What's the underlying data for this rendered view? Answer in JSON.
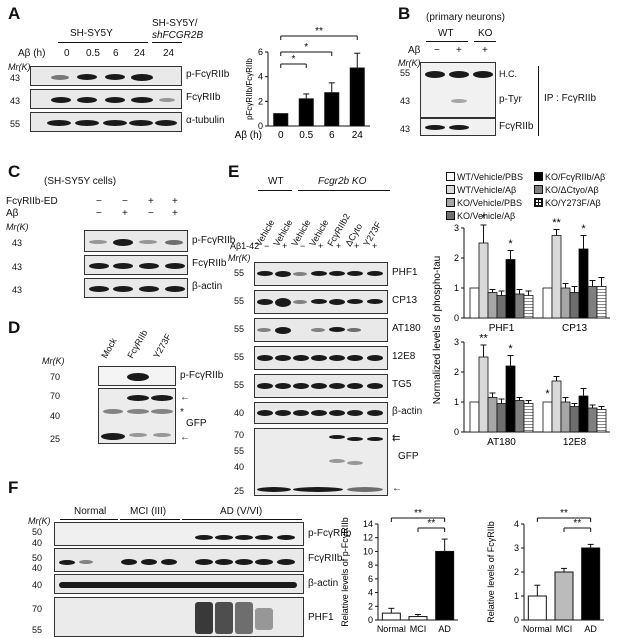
{
  "panels": {
    "A": {
      "letter": "A",
      "groups": [
        "SH-SY5Y",
        "SH-SY5Y/",
        "shFCGR2B"
      ],
      "abeta_label": "Aβ (h)",
      "times": [
        "0",
        "0.5",
        "6",
        "24",
        "24"
      ],
      "mr": "Mr(K)",
      "rows": [
        {
          "mw": "43",
          "label": "p-FcγRIIb"
        },
        {
          "mw": "43",
          "label": "FcγRIIb"
        },
        {
          "mw": "55",
          "label": "α-tubulin"
        }
      ]
    },
    "B": {
      "letter": "B",
      "subtitle": "(primary neurons)",
      "wt": "WT",
      "ko": "KO",
      "abeta": "Aβ",
      "minus": "−",
      "plus": "+",
      "mr": "Mr(K)",
      "mws": [
        "55",
        "43",
        "43"
      ],
      "labels": [
        "H.C.",
        "p-Tyr",
        "FcγRIIb"
      ],
      "ip": "IP : FcγRIIb"
    },
    "C": {
      "letter": "C",
      "subtitle": "(SH-SY5Y cells)",
      "cond1": "FcγRIIb-ED",
      "cond2": "Aβ",
      "signs1": [
        "−",
        "−",
        "+",
        "+"
      ],
      "signs2": [
        "−",
        "+",
        "−",
        "+"
      ],
      "mr": "Mr(K)",
      "rows": [
        {
          "mw": "43",
          "label": "p-FcγRIIb"
        },
        {
          "mw": "43",
          "label": "FcγRIIb"
        },
        {
          "mw": "43",
          "label": "β-actin"
        }
      ]
    },
    "D": {
      "letter": "D",
      "lanes": [
        "Mock",
        "FcγRIIb",
        "Y273F"
      ],
      "mr": "Mr(K)",
      "mws": [
        "70",
        "70",
        "40",
        "25"
      ],
      "labels": [
        "p-FcγRIIb",
        "GFP"
      ],
      "star": "*"
    },
    "E": {
      "letter": "E",
      "wt": "WT",
      "ko": "Fcgr2b KO",
      "lanes": [
        "Vehicle",
        "Vehicle",
        "Vehicle",
        "Vehicle",
        "FcγRIIb2",
        "ΔCyto",
        "Y273F"
      ],
      "abeta": "Aβ1-42",
      "signs": [
        "−",
        "+",
        "−",
        "+",
        "+",
        "+",
        "+"
      ],
      "mr": "Mr(K)",
      "rows": [
        {
          "mw": "55",
          "label": "PHF1"
        },
        {
          "mw": "55",
          "label": "CP13"
        },
        {
          "mw": "55",
          "label": "AT180"
        },
        {
          "mw": "55",
          "label": "12E8"
        },
        {
          "mw": "55",
          "label": "TG5"
        },
        {
          "mw": "40",
          "label": "β-actin"
        }
      ],
      "gfp_label": "GFP",
      "gfp_mws": [
        "70",
        "55",
        "40",
        "25"
      ]
    },
    "F": {
      "letter": "F",
      "groups": [
        "Normal",
        "MCI (III)",
        "AD (V/VI)"
      ],
      "mr": "Mr(K)",
      "mws": [
        "50",
        "40",
        "50",
        "40",
        "40",
        "70",
        "55"
      ],
      "labels": [
        "p-FcγRIIb",
        "FcγRIIb",
        "β-actin",
        "PHF1"
      ]
    }
  },
  "chart_data": [
    {
      "type": "bar",
      "panel": "A",
      "categories": [
        "0",
        "0.5",
        "6",
        "24"
      ],
      "values": [
        1.0,
        2.2,
        2.7,
        4.7
      ],
      "errors": [
        0,
        0.4,
        0.8,
        1.2
      ],
      "xlabel": "Aβ (h)",
      "ylabel": "pFcγRIIb/FcγRIIb",
      "ylim": [
        0,
        6
      ],
      "yticks": [
        "0",
        "2",
        "4",
        "6"
      ],
      "significance": [
        "*",
        "*",
        "**"
      ],
      "color": "#000000"
    },
    {
      "type": "bar",
      "panel": "E",
      "legend": [
        "WT/Vehicle/PBS",
        "WT/Vehicle/Aβ",
        "KO/Vehicle/PBS",
        "KO/Vehicle/Aβ",
        "KO/FcγRIIb/Aβ",
        "KO/ΔCtyo/Aβ",
        "KO/Y273F/Aβ"
      ],
      "ylabel": "Normalized levels of phospho-tau",
      "ylim": [
        0,
        3
      ],
      "yticks": [
        "0",
        "1",
        "2",
        "3"
      ],
      "categories": [
        "PHF1",
        "CP13"
      ],
      "series": [
        {
          "name": "WT/Vehicle/PBS",
          "values": [
            1.0,
            1.0
          ],
          "errors": [
            0,
            0
          ]
        },
        {
          "name": "WT/Vehicle/Aβ",
          "values": [
            2.5,
            2.75
          ],
          "errors": [
            0.6,
            0.2
          ]
        },
        {
          "name": "KO/Vehicle/PBS",
          "values": [
            0.85,
            1.0
          ],
          "errors": [
            0.1,
            0.15
          ]
        },
        {
          "name": "KO/Vehicle/Aβ",
          "values": [
            0.75,
            0.85
          ],
          "errors": [
            0.15,
            0.2
          ]
        },
        {
          "name": "KO/FcγRIIb/Aβ",
          "values": [
            1.95,
            2.3
          ],
          "errors": [
            0.3,
            0.45
          ]
        },
        {
          "name": "KO/ΔCtyo/Aβ",
          "values": [
            0.8,
            1.05
          ],
          "errors": [
            0.15,
            0.2
          ]
        },
        {
          "name": "KO/Y273F/Aβ",
          "values": [
            0.75,
            1.05
          ],
          "errors": [
            0.15,
            0.3
          ]
        }
      ],
      "significance": [
        "*",
        "*",
        "**",
        "*"
      ]
    },
    {
      "type": "bar",
      "panel": "E",
      "categories": [
        "AT180",
        "12E8"
      ],
      "ylim": [
        0,
        3
      ],
      "yticks": [
        "0",
        "1",
        "2",
        "3"
      ],
      "series": [
        {
          "name": "WT/Vehicle/PBS",
          "values": [
            1.0,
            1.0
          ],
          "errors": [
            0,
            0
          ]
        },
        {
          "name": "WT/Vehicle/Aβ",
          "values": [
            2.5,
            1.7
          ],
          "errors": [
            0.4,
            0.15
          ]
        },
        {
          "name": "KO/Vehicle/PBS",
          "values": [
            1.15,
            1.0
          ],
          "errors": [
            0.15,
            0.15
          ]
        },
        {
          "name": "KO/Vehicle/Aβ",
          "values": [
            0.95,
            0.85
          ],
          "errors": [
            0.15,
            0.1
          ]
        },
        {
          "name": "KO/FcγRIIb/Aβ",
          "values": [
            2.2,
            1.2
          ],
          "errors": [
            0.35,
            0.25
          ]
        },
        {
          "name": "KO/ΔCtyo/Aβ",
          "values": [
            1.05,
            0.8
          ],
          "errors": [
            0.1,
            0.1
          ]
        },
        {
          "name": "KO/Y273F/Aβ",
          "values": [
            0.95,
            0.75
          ],
          "errors": [
            0.1,
            0.1
          ]
        }
      ],
      "significance": [
        "**",
        "*",
        "*"
      ]
    },
    {
      "type": "bar",
      "panel": "F",
      "categories": [
        "Normal",
        "MCI",
        "AD"
      ],
      "values": [
        1.0,
        0.5,
        10.0
      ],
      "errors": [
        0.7,
        0.3,
        1.8
      ],
      "colors": [
        "#ffffff",
        "#ffffff",
        "#000000"
      ],
      "ylabel": "Relative levels of p-FcγRIIb",
      "ylim": [
        0,
        14
      ],
      "yticks": [
        "0",
        "2",
        "4",
        "6",
        "8",
        "10",
        "12",
        "14"
      ],
      "significance": [
        "**",
        "**"
      ]
    },
    {
      "type": "bar",
      "panel": "F",
      "categories": [
        "Normal",
        "MCI",
        "AD"
      ],
      "values": [
        1.0,
        2.0,
        3.0
      ],
      "errors": [
        0.45,
        0.15,
        0.15
      ],
      "colors": [
        "#ffffff",
        "#bbbbbb",
        "#000000"
      ],
      "ylabel": "Relative levels of FcγRIIb",
      "ylim": [
        0,
        4
      ],
      "yticks": [
        "0",
        "1",
        "2",
        "3",
        "4"
      ],
      "significance": [
        "**",
        "**"
      ]
    }
  ]
}
